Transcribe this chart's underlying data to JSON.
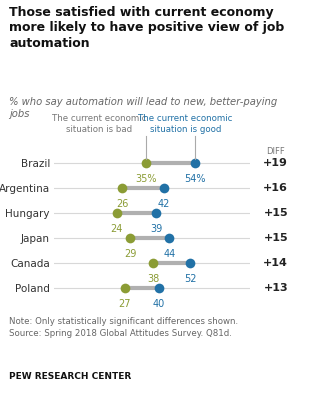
{
  "title": "Those satisfied with current economy\nmore likely to have positive view of job\nautomation",
  "subtitle": "% who say automation will lead to new, better-paying\njobs",
  "countries": [
    "Brazil",
    "Argentina",
    "Hungary",
    "Japan",
    "Canada",
    "Poland"
  ],
  "bad_values": [
    35,
    26,
    24,
    29,
    38,
    27
  ],
  "good_values": [
    54,
    42,
    39,
    44,
    52,
    40
  ],
  "diffs": [
    "+19",
    "+16",
    "+15",
    "+15",
    "+14",
    "+13"
  ],
  "bad_color": "#8b9c35",
  "good_color": "#2171a6",
  "line_color": "#b0b0b0",
  "legend_bad": "The current economic\nsituation is bad",
  "legend_good": "The current economic\nsituation is good",
  "note": "Note: Only statistically significant differences shown.\nSource: Spring 2018 Global Attitudes Survey. Q81d.",
  "source": "PEW RESEARCH CENTER",
  "bg_color": "#ffffff",
  "diff_bg": "#e8e8e8",
  "xmin": 0,
  "xmax": 75
}
